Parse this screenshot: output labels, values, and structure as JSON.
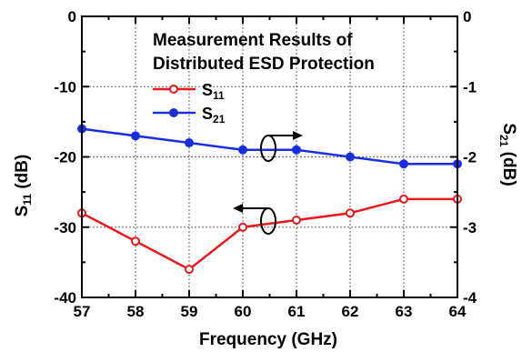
{
  "chart_data": {
    "type": "line",
    "annotation": [
      "Measurement Results of",
      "Distributed ESD Protection"
    ],
    "xlabel": "Frequency (GHz)",
    "ylabel_left": {
      "main": "S",
      "sub": "11",
      "rest": " (dB)"
    },
    "ylabel_right": {
      "main": "S",
      "sub": "21",
      "rest": " (dB)"
    },
    "x": [
      57,
      58,
      59,
      60,
      61,
      62,
      63,
      64
    ],
    "xlim": [
      57,
      64
    ],
    "xticks": [
      "57",
      "58",
      "59",
      "60",
      "61",
      "62",
      "63",
      "64"
    ],
    "ylim_left": [
      -40,
      0
    ],
    "yticks_left": [
      "0",
      "-10",
      "-20",
      "-30",
      "-40"
    ],
    "ylim_right": [
      -4,
      0
    ],
    "yticks_right": [
      "0",
      "-1",
      "-2",
      "-3",
      "-4"
    ],
    "grid": true,
    "legend_position": "upper-center",
    "series": [
      {
        "name_main": "S",
        "name_sub": "11",
        "axis": "left",
        "color": "#e8181e",
        "marker": "open-circle",
        "values": [
          -28,
          -32,
          -36,
          -30,
          -29,
          -28,
          -26,
          -26
        ]
      },
      {
        "name_main": "S",
        "name_sub": "21",
        "axis": "right",
        "color": "#1a2ee0",
        "marker": "filled-circle",
        "values": [
          -1.6,
          -1.7,
          -1.8,
          -1.9,
          -1.9,
          -2.0,
          -2.1,
          -2.1
        ]
      }
    ]
  }
}
